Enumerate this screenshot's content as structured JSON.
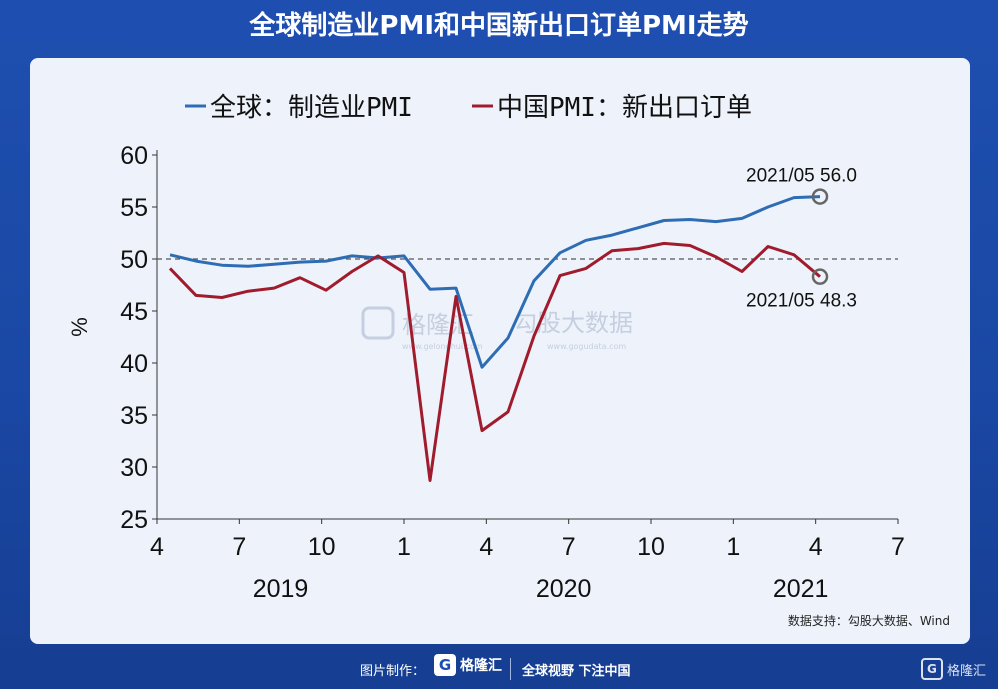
{
  "title": "全球制造业PMI和中国新出口订单PMI走势",
  "source": "数据支持：勾股大数据、Wind",
  "watermark": {
    "left": "格隆汇",
    "right": "勾股大数据",
    "left_sub": "www.gelonghui.com",
    "right_sub": "www.gogudata.com"
  },
  "footer": {
    "made_by": "图片制作：",
    "brand": "格隆汇",
    "slogan": "全球视野 下注中国",
    "corner_brand": "格隆汇"
  },
  "colors": {
    "global": "#2e6db4",
    "china": "#a01c2c",
    "ref_line": "#555555"
  },
  "chart_data": {
    "type": "line",
    "ylabel": "%",
    "ylim": [
      25,
      60
    ],
    "yticks": [
      25,
      30,
      35,
      40,
      45,
      50,
      55,
      60
    ],
    "xticks": [
      "4",
      "7",
      "10",
      "1",
      "4",
      "7",
      "10",
      "1",
      "4",
      "7"
    ],
    "year_labels": [
      "2019",
      "2020",
      "2021"
    ],
    "reference_line": 50,
    "x": [
      "2019-04",
      "2019-05",
      "2019-06",
      "2019-07",
      "2019-08",
      "2019-09",
      "2019-10",
      "2019-11",
      "2019-12",
      "2020-01",
      "2020-02",
      "2020-03",
      "2020-04",
      "2020-05",
      "2020-06",
      "2020-07",
      "2020-08",
      "2020-09",
      "2020-10",
      "2020-11",
      "2020-12",
      "2021-01",
      "2021-02",
      "2021-03",
      "2021-04",
      "2021-05"
    ],
    "series": [
      {
        "name": "全球：制造业PMI",
        "values": [
          50.4,
          49.8,
          49.4,
          49.3,
          49.5,
          49.7,
          49.8,
          50.3,
          50.1,
          50.3,
          47.1,
          47.2,
          39.6,
          42.4,
          47.9,
          50.6,
          51.8,
          52.3,
          53.0,
          53.7,
          53.8,
          53.6,
          53.9,
          55.0,
          55.9,
          56.0
        ]
      },
      {
        "name": "中国PMI：新出口订单",
        "values": [
          49.1,
          46.5,
          46.3,
          46.9,
          47.2,
          48.2,
          47.0,
          48.8,
          50.3,
          48.7,
          28.7,
          46.4,
          33.5,
          35.3,
          42.6,
          48.4,
          49.1,
          50.8,
          51.0,
          51.5,
          51.3,
          50.2,
          48.8,
          51.2,
          50.4,
          48.3
        ]
      }
    ],
    "annotations": [
      {
        "series": "全球：制造业PMI",
        "x": "2021-05",
        "text": "2021/05 56.0"
      },
      {
        "series": "中国PMI：新出口订单",
        "x": "2021-05",
        "text": "2021/05 48.3"
      }
    ]
  }
}
